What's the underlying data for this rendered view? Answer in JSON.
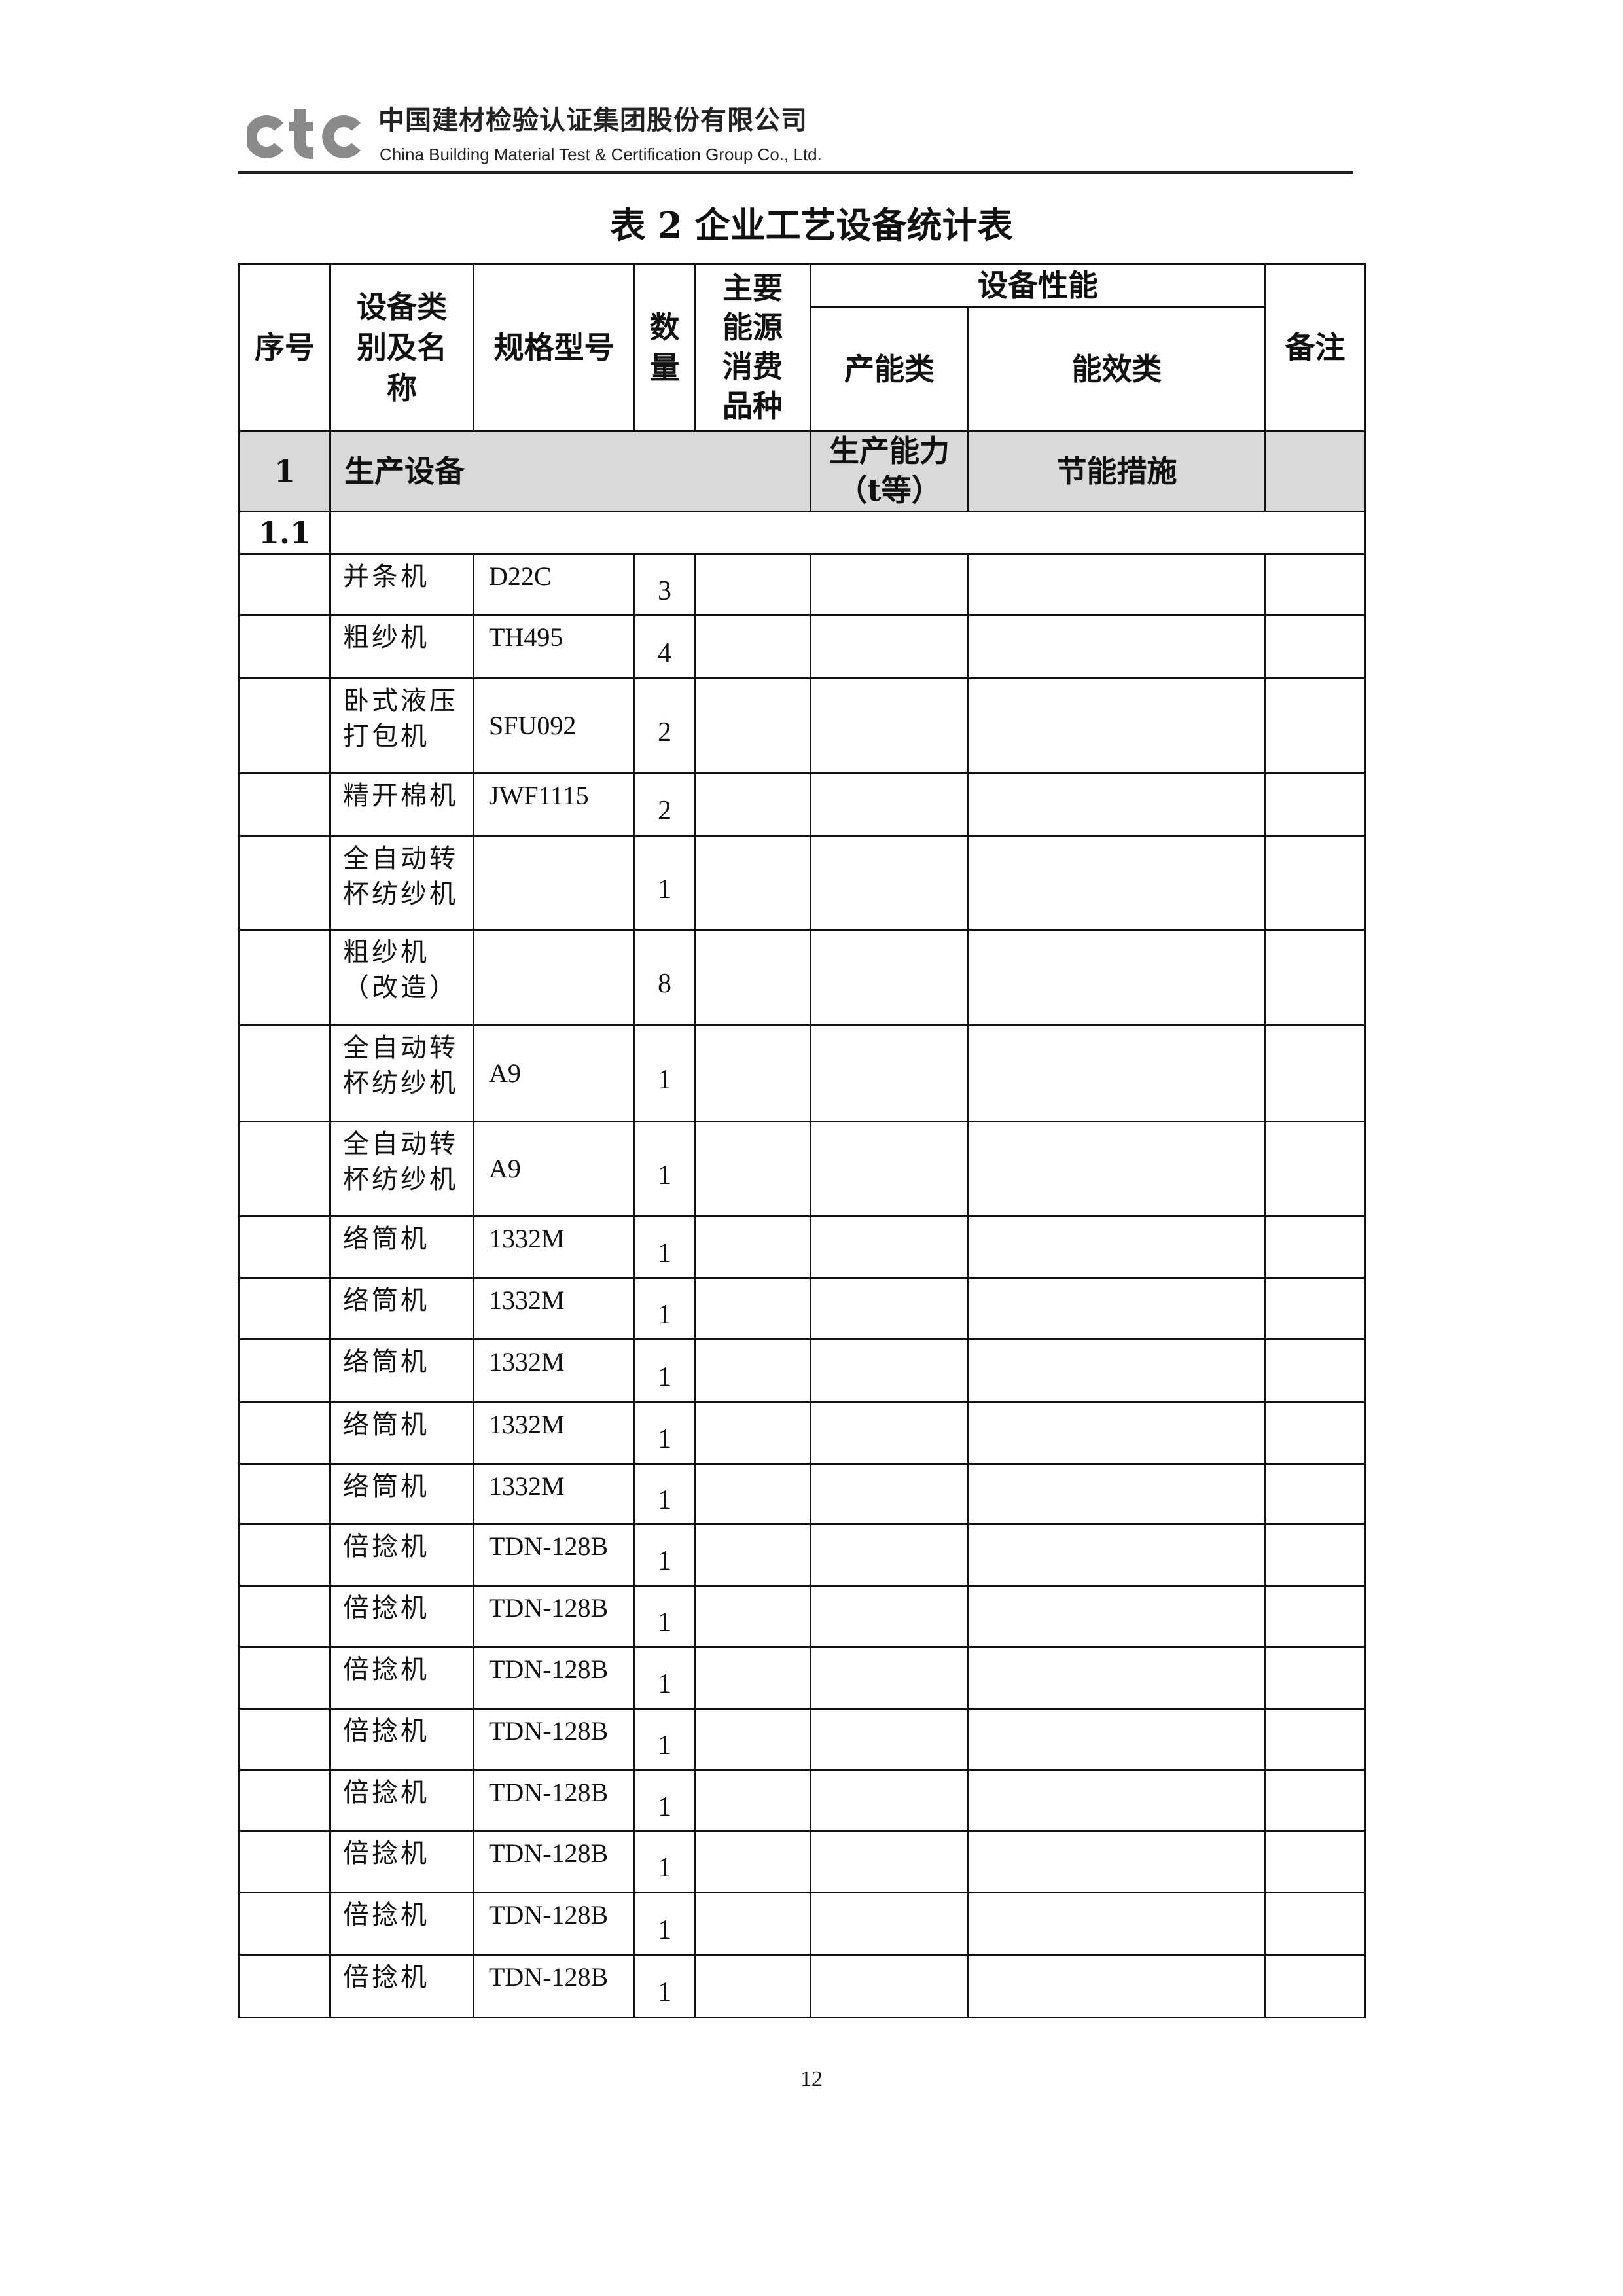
{
  "header": {
    "logo_text": "ctc",
    "company_cn": "中国建材检验认证集团股份有限公司",
    "company_en": "China Building Material Test & Certification Group Co., Ltd."
  },
  "title": "表 2 企业工艺设备统计表",
  "table": {
    "headers": {
      "seq": "序号",
      "name": "设备类别及名称",
      "model": "规格型号",
      "qty": "数量",
      "energy": "主要能源消费品种",
      "performance": "设备性能",
      "capacity": "产能类",
      "efficiency": "能效类",
      "remark": "备注"
    },
    "section": {
      "seq": "1",
      "name": "生产设备",
      "capacity": "生产能力（t等）",
      "efficiency": "节能措施"
    },
    "subsection": {
      "seq": "1.1"
    },
    "rows": [
      {
        "name": "并条机",
        "model": "D22C",
        "qty": "3"
      },
      {
        "name": "粗纱机",
        "model": "TH495",
        "qty": "4"
      },
      {
        "name": "卧式液压打包机",
        "model": "SFU092",
        "qty": "2"
      },
      {
        "name": "精开棉机",
        "model": "JWF1115",
        "qty": "2"
      },
      {
        "name": "全自动转杯纺纱机",
        "model": "",
        "qty": "1"
      },
      {
        "name": "粗纱机（改造）",
        "model": "",
        "qty": "8"
      },
      {
        "name": "全自动转杯纺纱机",
        "model": "A9",
        "qty": "1"
      },
      {
        "name": "全自动转杯纺纱机",
        "model": "A9",
        "qty": "1"
      },
      {
        "name": "络筒机",
        "model": "1332M",
        "qty": "1"
      },
      {
        "name": "络筒机",
        "model": "1332M",
        "qty": "1"
      },
      {
        "name": "络筒机",
        "model": "1332M",
        "qty": "1"
      },
      {
        "name": "络筒机",
        "model": "1332M",
        "qty": "1"
      },
      {
        "name": "络筒机",
        "model": "1332M",
        "qty": "1"
      },
      {
        "name": "倍捻机",
        "model": "TDN-128B",
        "qty": "1"
      },
      {
        "name": "倍捻机",
        "model": "TDN-128B",
        "qty": "1"
      },
      {
        "name": "倍捻机",
        "model": "TDN-128B",
        "qty": "1"
      },
      {
        "name": "倍捻机",
        "model": "TDN-128B",
        "qty": "1"
      },
      {
        "name": "倍捻机",
        "model": "TDN-128B",
        "qty": "1"
      },
      {
        "name": "倍捻机",
        "model": "TDN-128B",
        "qty": "1"
      },
      {
        "name": "倍捻机",
        "model": "TDN-128B",
        "qty": "1"
      },
      {
        "name": "倍捻机",
        "model": "TDN-128B",
        "qty": "1"
      }
    ]
  },
  "page_number": "12",
  "colors": {
    "logo": "#8a8a8a",
    "section_bg": "#d9d9d9"
  }
}
